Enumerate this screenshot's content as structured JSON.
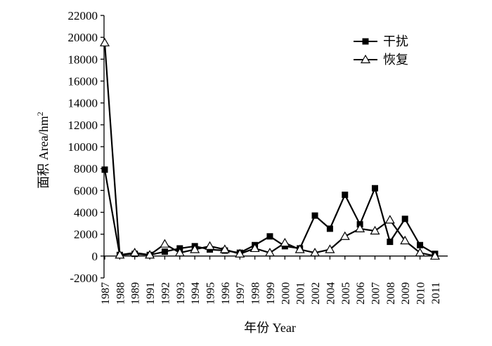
{
  "chart_data": {
    "type": "line",
    "title": "",
    "xlabel": "年份 Year",
    "ylabel": "面积 Area/hm",
    "ylabel_superscript": "2",
    "ylim": [
      -2000,
      22000
    ],
    "yticks": [
      -2000,
      0,
      2000,
      4000,
      6000,
      8000,
      10000,
      12000,
      14000,
      16000,
      18000,
      20000,
      22000
    ],
    "grid": false,
    "legend_position": "top-right",
    "categories": [
      "1987",
      "1988",
      "1989",
      "1991",
      "1992",
      "1993",
      "1994",
      "1995",
      "1996",
      "1997",
      "1998",
      "1999",
      "2000",
      "2001",
      "2002",
      "2004",
      "2005",
      "2006",
      "2007",
      "2008",
      "2009",
      "2010",
      "2011"
    ],
    "series": [
      {
        "name": "干扰",
        "marker": "filled-square",
        "color": "#000000",
        "values": [
          7900,
          100,
          200,
          100,
          400,
          700,
          900,
          600,
          500,
          300,
          1000,
          1800,
          900,
          700,
          3700,
          2500,
          5600,
          2900,
          6200,
          1300,
          3400,
          1000,
          200
        ]
      },
      {
        "name": "恢复",
        "marker": "open-triangle",
        "color": "#000000",
        "values": [
          19500,
          100,
          300,
          100,
          1100,
          300,
          600,
          900,
          600,
          200,
          700,
          300,
          1200,
          600,
          300,
          600,
          1800,
          2500,
          2300,
          3300,
          1400,
          300,
          0
        ]
      }
    ]
  }
}
